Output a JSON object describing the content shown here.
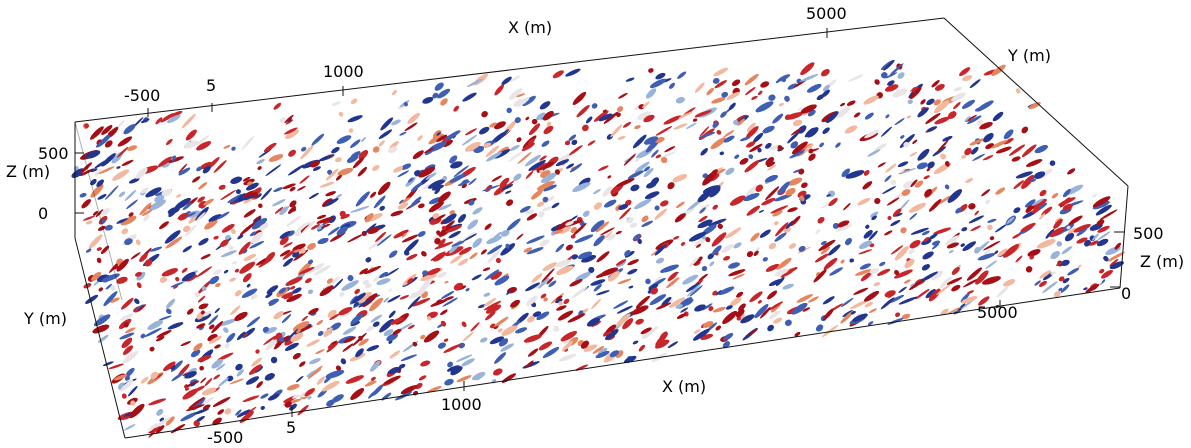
{
  "axes": {
    "top_x_title": "X (m)",
    "top_y_title": "Y (m)",
    "left_z_title": "Z (m)",
    "left_y_title": "Y (m)",
    "right_z_title": "Z (m)",
    "bottom_x_title": "X (m)"
  },
  "ticks": {
    "top_y_minus500": "-500",
    "top_y_5": "5",
    "top_x_1000": "1000",
    "top_x_5000": "5000",
    "left_z_500": "500",
    "left_z_0": "0",
    "right_z_500": "500",
    "right_z_0": "0",
    "right_x_5000": "5000",
    "bottom_x_1000": "1000",
    "bottom_y_5": "5",
    "bottom_y_minus500": "-500"
  },
  "colors": {
    "red_dark": "#a50f15",
    "red_mid": "#c8262a",
    "red_light": "#e6865f",
    "pink": "#f2b8a0",
    "white": "#e9e4e6",
    "light_blue": "#9ab3d8",
    "blue_mid": "#3e5fb4",
    "blue_dark": "#23368f"
  }
}
